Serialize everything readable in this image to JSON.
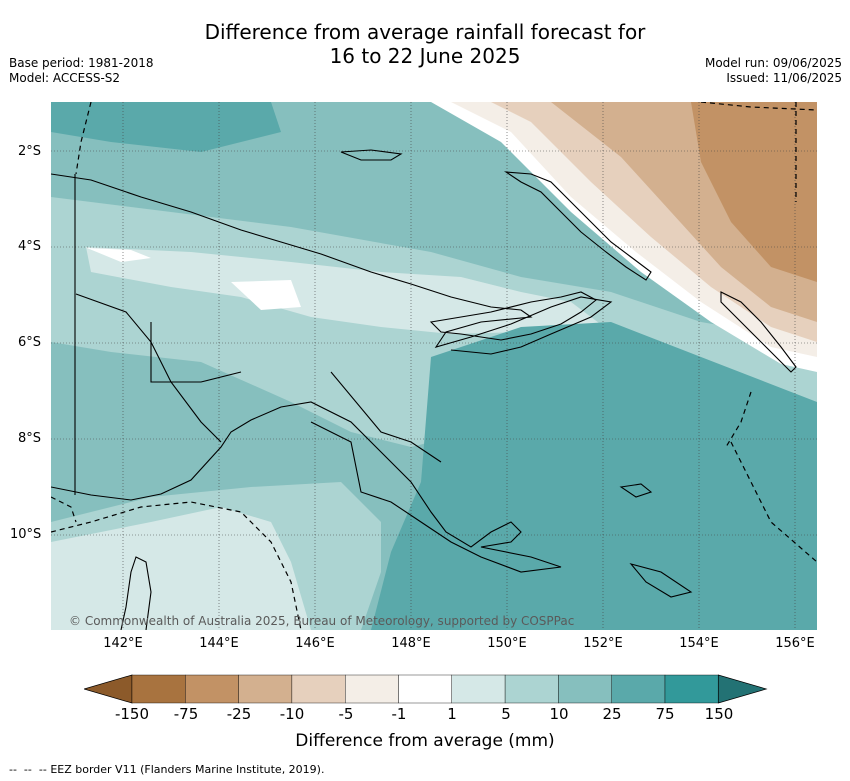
{
  "title_line1": "Difference from average rainfall forecast for",
  "title_line2": "16 to 22 June 2025",
  "meta_left": {
    "base_period": "Base period: 1981-2018",
    "model": "Model: ACCESS-S2"
  },
  "meta_right": {
    "model_run": "Model run: 09/06/2025",
    "issued": "Issued: 11/06/2025"
  },
  "lat_ticks": [
    "2°S",
    "4°S",
    "6°S",
    "8°S",
    "10°S"
  ],
  "lon_ticks": [
    "142°E",
    "144°E",
    "146°E",
    "148°E",
    "150°E",
    "152°E",
    "154°E",
    "156°E"
  ],
  "copyright": "© Commonwealth of Australia 2025, Bureau of Meteorology, supported by COSPPac",
  "colorbar": {
    "labels": [
      "-150",
      "-75",
      "-25",
      "-10",
      "-5",
      "-1",
      "1",
      "5",
      "10",
      "25",
      "75",
      "150"
    ],
    "colors": [
      "#8c5a2a",
      "#a8733f",
      "#c29265",
      "#d3b08f",
      "#e6d0bd",
      "#f4eee7",
      "#ffffff",
      "#d5e8e7",
      "#acd4d2",
      "#86bfbe",
      "#5aa9aa",
      "#32999a",
      "#237274"
    ],
    "title": "Difference from average (mm)"
  },
  "eez_note": "EEZ border V11 (Flanders Marine Institute, 2019)."
}
